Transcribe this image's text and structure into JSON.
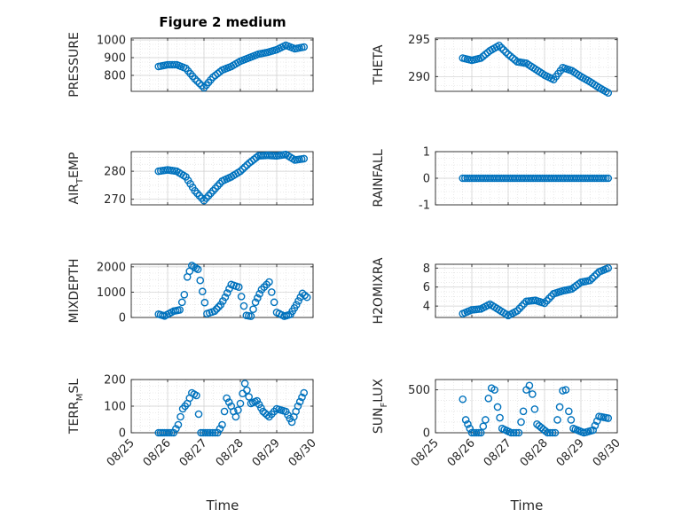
{
  "figure_title": "Figure 2 medium",
  "colors": {
    "marker": "#0072BD",
    "grid": "#d9d9d9",
    "axis": "#262626"
  },
  "chart_data": [
    {
      "type": "scatter",
      "ylabel": "PRESSURE",
      "ylabel_main": "PRESSURE",
      "ylabel_sub": "",
      "ylabel_tail": "",
      "ylim": [
        710,
        1010
      ],
      "yticks": [
        800,
        900,
        1000
      ],
      "xlim": [
        "08/25",
        "08/30"
      ],
      "grid": true,
      "x": [
        "08/25 18:00",
        "08/26 00:00",
        "08/26 06:00",
        "08/26 12:00",
        "08/26 18:00",
        "08/27 00:00",
        "08/27 06:00",
        "08/27 12:00",
        "08/27 18:00",
        "08/28 00:00",
        "08/28 06:00",
        "08/28 12:00",
        "08/28 18:00",
        "08/29 00:00",
        "08/29 06:00",
        "08/29 12:00",
        "08/29 18:00"
      ],
      "y": [
        850,
        860,
        860,
        840,
        780,
        730,
        790,
        830,
        850,
        880,
        900,
        920,
        930,
        945,
        970,
        950,
        960
      ]
    },
    {
      "type": "scatter",
      "ylabel": "THETA",
      "ylabel_main": "THETA",
      "ylabel_sub": "",
      "ylabel_tail": "",
      "ylim": [
        288,
        295.2
      ],
      "yticks": [
        290,
        295
      ],
      "xlim": [
        "08/25",
        "08/30"
      ],
      "grid": true,
      "x": [
        "08/25 18:00",
        "08/26 00:00",
        "08/26 06:00",
        "08/26 12:00",
        "08/26 18:00",
        "08/27 00:00",
        "08/27 06:00",
        "08/27 12:00",
        "08/27 18:00",
        "08/28 00:00",
        "08/28 06:00",
        "08/28 12:00",
        "08/28 18:00",
        "08/29 00:00",
        "08/29 06:00",
        "08/29 12:00",
        "08/29 18:00"
      ],
      "y": [
        292.5,
        292.2,
        292.5,
        293.5,
        294.2,
        293,
        292,
        291.8,
        291,
        290.2,
        289.6,
        291.2,
        290.8,
        290,
        289.3,
        288.5,
        287.8
      ]
    },
    {
      "type": "scatter",
      "ylabel": "AIR_TEMP",
      "ylabel_main": "AIR",
      "ylabel_sub": "T",
      "ylabel_tail": "EMP",
      "ylim": [
        268,
        287
      ],
      "yticks": [
        270,
        280
      ],
      "xlim": [
        "08/25",
        "08/30"
      ],
      "grid": true,
      "x": [
        "08/25 18:00",
        "08/26 00:00",
        "08/26 06:00",
        "08/26 12:00",
        "08/26 18:00",
        "08/27 00:00",
        "08/27 06:00",
        "08/27 12:00",
        "08/27 18:00",
        "08/28 00:00",
        "08/28 06:00",
        "08/28 12:00",
        "08/28 18:00",
        "08/29 00:00",
        "08/29 06:00",
        "08/29 12:00",
        "08/29 18:00"
      ],
      "y": [
        280,
        280.5,
        280,
        278,
        273,
        269.5,
        273,
        276.5,
        278,
        280,
        283,
        285.5,
        285.7,
        285.5,
        286,
        284,
        284.5
      ]
    },
    {
      "type": "scatter",
      "ylabel": "RAINFALL",
      "ylabel_main": "RAINFALL",
      "ylabel_sub": "",
      "ylabel_tail": "",
      "ylim": [
        -1,
        1
      ],
      "yticks": [
        -1,
        0,
        1
      ],
      "xlim": [
        "08/25",
        "08/30"
      ],
      "grid": true,
      "x": [
        "08/25 18:00",
        "08/26 00:00",
        "08/26 06:00",
        "08/26 12:00",
        "08/26 18:00",
        "08/27 00:00",
        "08/27 06:00",
        "08/27 12:00",
        "08/27 18:00",
        "08/28 00:00",
        "08/28 06:00",
        "08/28 12:00",
        "08/28 18:00",
        "08/29 00:00",
        "08/29 06:00",
        "08/29 12:00",
        "08/29 18:00"
      ],
      "y": [
        0,
        0,
        0,
        0,
        0,
        0,
        0,
        0,
        0,
        0,
        0,
        0,
        0,
        0,
        0,
        0,
        0
      ]
    },
    {
      "type": "scatter",
      "ylabel": "MIXDEPTH",
      "ylabel_main": "MIXDEPTH",
      "ylabel_sub": "",
      "ylabel_tail": "",
      "ylim": [
        0,
        2100
      ],
      "yticks": [
        0,
        1000,
        2000
      ],
      "xlim": [
        "08/25",
        "08/30"
      ],
      "grid": true,
      "x": [
        "08/25 18:00",
        "08/25 22:00",
        "08/26 04:00",
        "08/26 08:00",
        "08/26 11:00",
        "08/26 13:00",
        "08/26 16:00",
        "08/26 20:00",
        "08/27 02:00",
        "08/27 07:00",
        "08/27 11:00",
        "08/27 14:00",
        "08/27 18:00",
        "08/27 23:00",
        "08/28 04:00",
        "08/28 07:00",
        "08/28 10:00",
        "08/28 14:00",
        "08/28 19:00",
        "08/29 00:00",
        "08/29 05:00",
        "08/29 09:00",
        "08/29 13:00",
        "08/29 17:00",
        "08/29 20:00"
      ],
      "y": [
        130,
        60,
        250,
        300,
        900,
        1600,
        2050,
        1900,
        150,
        250,
        500,
        800,
        1300,
        1200,
        80,
        50,
        600,
        1100,
        1400,
        200,
        50,
        120,
        500,
        950,
        800
      ]
    },
    {
      "type": "scatter",
      "ylabel": "H2OMIXRA",
      "ylabel_main": "H2OMIXRA",
      "ylabel_sub": "",
      "ylabel_tail": "",
      "ylim": [
        2.8,
        8.4
      ],
      "yticks": [
        4,
        6,
        8
      ],
      "xlim": [
        "08/25",
        "08/30"
      ],
      "grid": true,
      "x": [
        "08/25 18:00",
        "08/26 00:00",
        "08/26 06:00",
        "08/26 12:00",
        "08/26 18:00",
        "08/27 00:00",
        "08/27 06:00",
        "08/27 12:00",
        "08/27 18:00",
        "08/28 00:00",
        "08/28 06:00",
        "08/28 12:00",
        "08/28 18:00",
        "08/29 00:00",
        "08/29 06:00",
        "08/29 12:00",
        "08/29 18:00"
      ],
      "y": [
        3.2,
        3.6,
        3.7,
        4.2,
        3.6,
        3,
        3.5,
        4.5,
        4.6,
        4.3,
        5.3,
        5.6,
        5.8,
        6.5,
        6.7,
        7.6,
        8
      ]
    },
    {
      "type": "scatter",
      "ylabel": "TERR_MSL",
      "ylabel_main": "TERR",
      "ylabel_sub": "M",
      "ylabel_tail": "SL",
      "ylim": [
        0,
        200
      ],
      "yticks": [
        0,
        100,
        200
      ],
      "xlim": [
        "08/25",
        "08/30"
      ],
      "grid": true,
      "x": [
        "08/25 18:00",
        "08/25 22:00",
        "08/26 04:00",
        "08/26 07:00",
        "08/26 10:00",
        "08/26 13:00",
        "08/26 16:00",
        "08/26 19:00",
        "08/26 22:00",
        "08/27 04:00",
        "08/27 09:00",
        "08/27 12:00",
        "08/27 15:00",
        "08/27 18:00",
        "08/27 21:00",
        "08/28 00:00",
        "08/28 03:00",
        "08/28 07:00",
        "08/28 11:00",
        "08/28 15:00",
        "08/28 19:00",
        "08/29 00:00",
        "08/29 06:00",
        "08/29 10:00",
        "08/29 14:00",
        "08/29 18:00"
      ],
      "y": [
        0,
        0,
        0,
        30,
        90,
        110,
        150,
        140,
        0,
        0,
        0,
        30,
        130,
        100,
        60,
        110,
        185,
        110,
        120,
        80,
        60,
        90,
        80,
        40,
        100,
        150
      ]
    },
    {
      "type": "scatter",
      "ylabel": "SUN_FLUX",
      "ylabel_main": "SUN",
      "ylabel_sub": "F",
      "ylabel_tail": "LUX",
      "ylim": [
        0,
        620
      ],
      "yticks": [
        0,
        500
      ],
      "xlim": [
        "08/25",
        "08/30"
      ],
      "grid": true,
      "x": [
        "08/25 18:00",
        "08/25 20:00",
        "08/26 00:00",
        "08/26 06:00",
        "08/26 09:00",
        "08/26 11:00",
        "08/26 13:00",
        "08/26 15:00",
        "08/26 17:00",
        "08/26 20:00",
        "08/27 02:00",
        "08/27 07:00",
        "08/27 10:00",
        "08/27 12:00",
        "08/27 14:00",
        "08/27 16:00",
        "08/27 19:00",
        "08/28 02:00",
        "08/28 07:00",
        "08/28 10:00",
        "08/28 12:00",
        "08/28 14:00",
        "08/28 16:00",
        "08/28 19:00",
        "08/29 02:00",
        "08/29 08:00",
        "08/29 12:00",
        "08/29 18:00"
      ],
      "y": [
        390,
        150,
        0,
        0,
        150,
        400,
        520,
        500,
        300,
        50,
        0,
        0,
        250,
        500,
        550,
        450,
        100,
        0,
        0,
        300,
        490,
        500,
        250,
        50,
        0,
        30,
        190,
        170
      ]
    }
  ],
  "xticks": [
    "08/25",
    "08/26",
    "08/27",
    "08/28",
    "08/29",
    "08/30"
  ],
  "xlabel": "Time"
}
